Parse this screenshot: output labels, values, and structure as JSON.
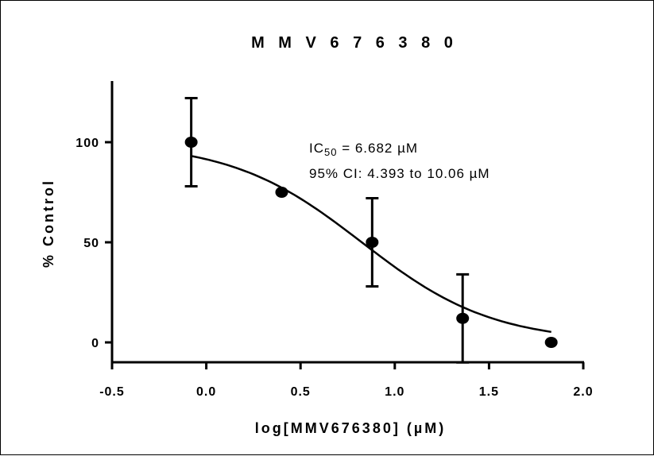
{
  "chart_data": {
    "type": "scatter",
    "title": "M M V 6 7 6 3 8 0",
    "xlabel": "log[MMV676380] (µM)",
    "ylabel": "% Control",
    "xlim": [
      -0.5,
      2.0
    ],
    "ylim": [
      -5,
      130
    ],
    "x_ticks": [
      "-0.5",
      "0.0",
      "0.5",
      "1.0",
      "1.5",
      "2.0"
    ],
    "x_tick_values": [
      -0.5,
      0.0,
      0.5,
      1.0,
      1.5,
      2.0
    ],
    "y_ticks": [
      "0",
      "50",
      "100"
    ],
    "y_tick_values": [
      0,
      50,
      100
    ],
    "grid": false,
    "points": [
      {
        "x": -0.08,
        "y": 100,
        "err": 22
      },
      {
        "x": 0.4,
        "y": 75,
        "err": 0
      },
      {
        "x": 0.88,
        "y": 50,
        "err": 22
      },
      {
        "x": 1.36,
        "y": 12,
        "err": 22
      },
      {
        "x": 1.83,
        "y": 0,
        "err": 0
      }
    ],
    "fit": {
      "ic50_log": 0.825,
      "top": 100,
      "bottom": 0,
      "hill": 1.25,
      "x_range": [
        -0.08,
        1.83
      ]
    },
    "annotation": {
      "ic50_prefix": "IC",
      "ic50_sub": "50",
      "ic50_value": " = 6.682 µM",
      "ci": "95% CI: 4.393 to 10.06 µM"
    }
  }
}
